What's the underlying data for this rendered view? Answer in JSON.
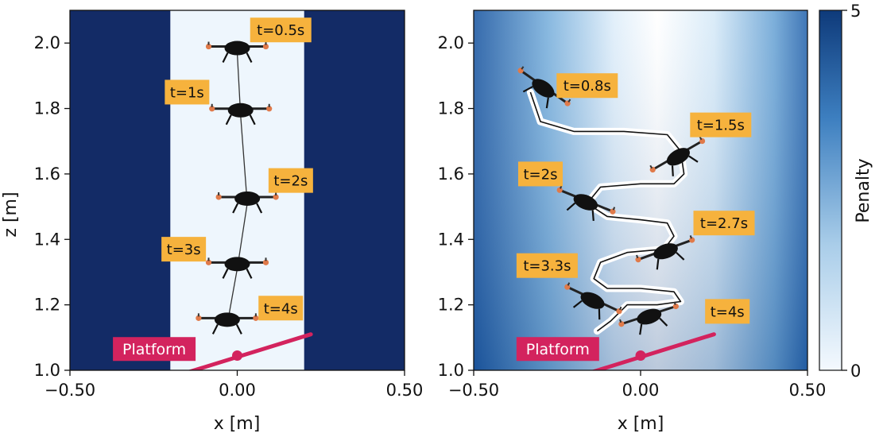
{
  "colors": {
    "obstacle": "#132b66",
    "corridor": "#eef6fd",
    "platform": "#d3235e",
    "label_bg": "#f6b23d",
    "drone_body": "#111111",
    "rotor": "#e07a4a",
    "colormap_low": "#f4f9fe",
    "colormap_high": "#0e3a7a"
  },
  "chart_data": [
    {
      "type": "scatter",
      "panel": "left",
      "xlabel": "x [m]",
      "ylabel": "z [m]",
      "xlim": [
        -0.5,
        0.5
      ],
      "ylim": [
        1.0,
        2.1
      ],
      "x_ticks": [
        {
          "value": -0.5,
          "label": "−0.50"
        },
        {
          "value": 0.0,
          "label": "0.00"
        },
        {
          "value": 0.5,
          "label": "0.50"
        }
      ],
      "y_ticks": [
        {
          "value": 1.0,
          "label": "1.0"
        },
        {
          "value": 1.2,
          "label": "1.2"
        },
        {
          "value": 1.4,
          "label": "1.4"
        },
        {
          "value": 1.6,
          "label": "1.6"
        },
        {
          "value": 1.8,
          "label": "1.8"
        },
        {
          "value": 2.0,
          "label": "2.0"
        }
      ],
      "corridor_x": [
        -0.2,
        0.2
      ],
      "trajectory": [
        [
          0.0,
          1.97
        ],
        [
          0.01,
          1.78
        ],
        [
          0.03,
          1.51
        ],
        [
          0.0,
          1.31
        ],
        [
          -0.03,
          1.14
        ]
      ],
      "drones": [
        {
          "time": "t=0.5s",
          "x": 0.0,
          "z": 1.97,
          "angle": 0
        },
        {
          "time": "t=1s",
          "x": 0.01,
          "z": 1.78,
          "angle": 0
        },
        {
          "time": "t=2s",
          "x": 0.03,
          "z": 1.51,
          "angle": 0
        },
        {
          "time": "t=3s",
          "x": 0.0,
          "z": 1.31,
          "angle": 0
        },
        {
          "time": "t=4s",
          "x": -0.03,
          "z": 1.14,
          "angle": 0
        }
      ],
      "labels": [
        {
          "text": "t=0.5s",
          "x": 0.13,
          "z": 2.04
        },
        {
          "text": "t=1s",
          "x": -0.15,
          "z": 1.85
        },
        {
          "text": "t=2s",
          "x": 0.16,
          "z": 1.58
        },
        {
          "text": "t=3s",
          "x": -0.16,
          "z": 1.37
        },
        {
          "text": "t=4s",
          "x": 0.13,
          "z": 1.19
        }
      ],
      "platform": {
        "label": "Platform",
        "center": [
          0.0,
          1.045
        ],
        "from": [
          -0.16,
          0.99
        ],
        "to": [
          0.22,
          1.11
        ]
      }
    },
    {
      "type": "heatmap",
      "panel": "right",
      "xlabel": "x [m]",
      "xlim": [
        -0.5,
        0.5
      ],
      "ylim": [
        1.0,
        2.1
      ],
      "x_ticks": [
        {
          "value": -0.5,
          "label": "−0.50"
        },
        {
          "value": 0.0,
          "label": "0.00"
        },
        {
          "value": 0.5,
          "label": "0.50"
        }
      ],
      "y_ticks": [
        {
          "value": 1.0,
          "label": "1.0"
        },
        {
          "value": 1.2,
          "label": "1.2"
        },
        {
          "value": 1.4,
          "label": "1.4"
        },
        {
          "value": 1.6,
          "label": "1.6"
        },
        {
          "value": 1.8,
          "label": "1.8"
        },
        {
          "value": 2.0,
          "label": "2.0"
        }
      ],
      "trajectory": [
        [
          -0.33,
          1.85
        ],
        [
          -0.3,
          1.76
        ],
        [
          -0.2,
          1.73
        ],
        [
          -0.05,
          1.73
        ],
        [
          0.08,
          1.72
        ],
        [
          0.12,
          1.67
        ],
        [
          0.13,
          1.6
        ],
        [
          0.1,
          1.57
        ],
        [
          0.0,
          1.57
        ],
        [
          -0.12,
          1.56
        ],
        [
          -0.16,
          1.51
        ],
        [
          -0.1,
          1.47
        ],
        [
          0.0,
          1.46
        ],
        [
          0.08,
          1.45
        ],
        [
          0.1,
          1.41
        ],
        [
          0.07,
          1.37
        ],
        [
          -0.04,
          1.36
        ],
        [
          -0.12,
          1.33
        ],
        [
          -0.14,
          1.28
        ],
        [
          -0.1,
          1.25
        ],
        [
          0.0,
          1.25
        ],
        [
          0.1,
          1.24
        ],
        [
          0.12,
          1.21
        ],
        [
          0.05,
          1.2
        ],
        [
          -0.04,
          1.2
        ],
        [
          -0.09,
          1.15
        ],
        [
          -0.13,
          1.12
        ]
      ],
      "drones": [
        {
          "time": "t=0.8s",
          "x": -0.3,
          "z": 1.85,
          "angle": 35
        },
        {
          "time": "t=1.5s",
          "x": 0.12,
          "z": 1.64,
          "angle": -30
        },
        {
          "time": "t=2s",
          "x": -0.17,
          "z": 1.5,
          "angle": 22
        },
        {
          "time": "t=2.7s",
          "x": 0.08,
          "z": 1.35,
          "angle": -20
        },
        {
          "time": "t=3.3s",
          "x": -0.15,
          "z": 1.2,
          "angle": 25
        },
        {
          "time": "t=4s",
          "x": 0.03,
          "z": 1.15,
          "angle": -18
        }
      ],
      "labels": [
        {
          "text": "t=0.8s",
          "x": -0.16,
          "z": 1.87
        },
        {
          "text": "t=1.5s",
          "x": 0.24,
          "z": 1.75
        },
        {
          "text": "t=2s",
          "x": -0.3,
          "z": 1.6
        },
        {
          "text": "t=2.7s",
          "x": 0.25,
          "z": 1.45
        },
        {
          "text": "t=3.3s",
          "x": -0.28,
          "z": 1.32
        },
        {
          "text": "t=4s",
          "x": 0.26,
          "z": 1.18
        }
      ],
      "platform": {
        "label": "Platform",
        "center": [
          0.0,
          1.045
        ],
        "from": [
          -0.16,
          0.99
        ],
        "to": [
          0.22,
          1.11
        ]
      }
    }
  ],
  "colorbar": {
    "label": "Penalty",
    "min": 0,
    "max": 5,
    "ticks": [
      {
        "value": 5,
        "label": "5"
      },
      {
        "value": 0,
        "label": "0"
      }
    ]
  }
}
